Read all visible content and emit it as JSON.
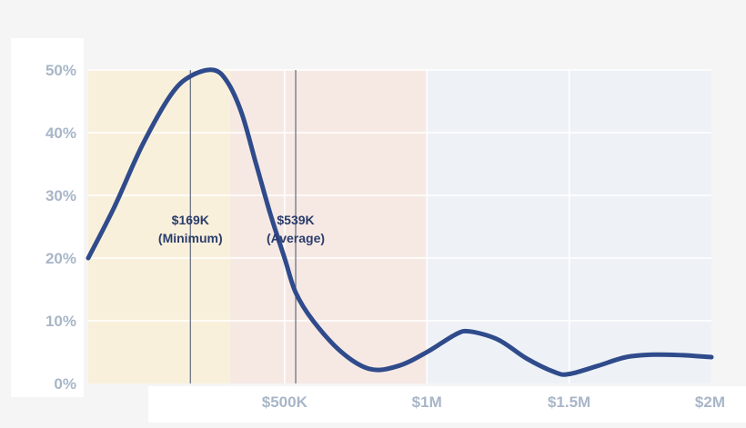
{
  "chart_data": {
    "type": "line",
    "title": "",
    "xlabel": "",
    "ylabel": "",
    "xlim": [
      -190,
      2000
    ],
    "ylim": [
      0,
      50
    ],
    "grid": true,
    "y_ticks": [
      {
        "value": 0,
        "label": "0%"
      },
      {
        "value": 10,
        "label": "10%"
      },
      {
        "value": 20,
        "label": "20%"
      },
      {
        "value": 30,
        "label": "30%"
      },
      {
        "value": 40,
        "label": "40%"
      },
      {
        "value": 50,
        "label": "50%"
      }
    ],
    "x_ticks": [
      {
        "value": 500,
        "label": "$500K"
      },
      {
        "value": 1000,
        "label": "$1M"
      },
      {
        "value": 1500,
        "label": "$1.5M"
      },
      {
        "value": 2000,
        "label": "$2M"
      }
    ],
    "x_gridlines": [
      500,
      1000,
      1500
    ],
    "bands": [
      {
        "name": "band-low",
        "from": -190,
        "to": 310,
        "color": "#f9f0dc"
      },
      {
        "name": "band-mid",
        "from": 310,
        "to": 1000,
        "color": "#f6e9e4"
      },
      {
        "name": "band-high",
        "from": 1000,
        "to": 2000,
        "color": "#eef2f7"
      }
    ],
    "markers": [
      {
        "x": 169,
        "label_line1": "$169K",
        "label_line2": "(Minimum)"
      },
      {
        "x": 539,
        "label_line1": "$539K",
        "label_line2": "(Average)"
      }
    ],
    "series": [
      {
        "name": "distribution",
        "color": "#2f4b8b",
        "x": [
          -190,
          -100,
          0,
          100,
          169,
          250,
          300,
          350,
          400,
          450,
          500,
          539,
          600,
          700,
          800,
          900,
          1000,
          1100,
          1150,
          1250,
          1350,
          1450,
          1500,
          1600,
          1700,
          1800,
          1900,
          2000
        ],
        "y": [
          20,
          28,
          38,
          46,
          49,
          50,
          48,
          43,
          35,
          27,
          20,
          14.5,
          10,
          5,
          2.3,
          2.8,
          5,
          7.8,
          8.3,
          7,
          4,
          1.8,
          1.5,
          2.8,
          4.2,
          4.6,
          4.5,
          4.2
        ]
      }
    ]
  }
}
